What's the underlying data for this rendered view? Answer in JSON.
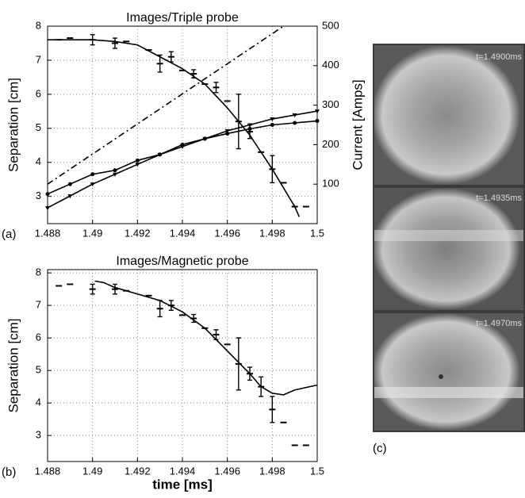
{
  "charts": [
    {
      "type": "line",
      "title": "Images/Triple probe",
      "panel_label": "(a)",
      "ylabel": "Separation [cm]",
      "y2label": "Current [Amps]",
      "xlim": [
        1.488,
        1.5
      ],
      "xticks": [
        1.488,
        1.49,
        1.492,
        1.494,
        1.496,
        1.498,
        1.5
      ],
      "ylim": [
        2.2,
        8
      ],
      "yticks": [
        3,
        4,
        5,
        6,
        7,
        8
      ],
      "y2lim": [
        0,
        500
      ],
      "y2ticks": [
        100,
        200,
        300,
        400,
        500
      ],
      "grid": true,
      "series": [
        {
          "x": [
            1.4885,
            1.489,
            1.49,
            1.491,
            1.4915,
            1.4925,
            1.493,
            1.4935,
            1.494,
            1.4945,
            1.495,
            1.4955,
            1.496,
            1.4965,
            1.497,
            1.4975,
            1.498,
            1.4985,
            1.499,
            1.4995
          ],
          "values": [
            7.6,
            7.65,
            7.6,
            7.5,
            7.55,
            7.3,
            6.9,
            7.1,
            6.7,
            6.6,
            6.3,
            6.2,
            5.8,
            5.2,
            4.9,
            4.3,
            3.8,
            3.4,
            2.7,
            2.7
          ],
          "errors": [
            null,
            null,
            0.15,
            0.15,
            null,
            null,
            0.25,
            0.15,
            null,
            0.12,
            null,
            0.15,
            null,
            0.8,
            0.2,
            null,
            0.4,
            null,
            null,
            null
          ],
          "marker": "dash",
          "connect": false,
          "color": "#000"
        },
        {
          "x": [
            1.488,
            1.489,
            1.49,
            1.491,
            1.492,
            1.493,
            1.494,
            1.495,
            1.496,
            1.497,
            1.498,
            1.499,
            1.4992
          ],
          "values": [
            7.6,
            7.6,
            7.6,
            7.55,
            7.45,
            7.1,
            6.75,
            6.3,
            5.6,
            4.8,
            3.8,
            2.7,
            2.4
          ],
          "color": "#000"
        },
        {
          "x": [
            1.488,
            1.489,
            1.49,
            1.491,
            1.492,
            1.493,
            1.494,
            1.495,
            1.496,
            1.497,
            1.498,
            1.499,
            1.5
          ],
          "values": [
            75,
            100,
            125,
            135,
            160,
            175,
            200,
            215,
            228,
            240,
            250,
            255,
            260
          ],
          "axis": "y2",
          "marker": "circle",
          "color": "#000"
        },
        {
          "x": [
            1.488,
            1.489,
            1.49,
            1.491,
            1.492,
            1.493,
            1.494,
            1.495,
            1.496,
            1.497,
            1.498,
            1.499,
            1.5
          ],
          "values": [
            40,
            70,
            100,
            125,
            150,
            175,
            195,
            215,
            235,
            250,
            265,
            275,
            285
          ],
          "axis": "y2",
          "marker": "triangle",
          "color": "#000"
        },
        {
          "x": [
            1.488,
            1.4985
          ],
          "values": [
            100,
            500
          ],
          "axis": "y2",
          "dash": "dash-dot",
          "color": "#000"
        }
      ]
    },
    {
      "type": "line",
      "title": "Images/Magnetic probe",
      "panel_label": "(b)",
      "ylabel": "Separation [cm]",
      "xlabel": "time [ms]",
      "xlim": [
        1.488,
        1.5
      ],
      "xticks": [
        1.488,
        1.49,
        1.492,
        1.494,
        1.496,
        1.498,
        1.5
      ],
      "ylim": [
        2.2,
        8.1
      ],
      "yticks": [
        3,
        4,
        5,
        6,
        7,
        8
      ],
      "grid": true,
      "series": [
        {
          "x": [
            1.4885,
            1.489,
            1.49,
            1.491,
            1.4915,
            1.4925,
            1.493,
            1.4935,
            1.494,
            1.4945,
            1.495,
            1.4955,
            1.496,
            1.4965,
            1.497,
            1.4975,
            1.498,
            1.4985,
            1.499,
            1.4995
          ],
          "values": [
            7.6,
            7.65,
            7.5,
            7.5,
            7.45,
            7.3,
            6.9,
            7.0,
            6.7,
            6.6,
            6.3,
            6.1,
            5.8,
            5.2,
            4.9,
            4.5,
            3.8,
            3.4,
            2.7,
            2.7
          ],
          "errors": [
            null,
            null,
            0.15,
            0.15,
            null,
            null,
            0.25,
            0.15,
            null,
            0.12,
            null,
            0.15,
            null,
            0.8,
            0.2,
            0.3,
            0.4,
            null,
            null,
            null
          ],
          "marker": "dash",
          "connect": false,
          "color": "#000"
        },
        {
          "x": [
            1.4901,
            1.4905,
            1.491,
            1.492,
            1.493,
            1.494,
            1.495,
            1.496,
            1.497,
            1.4975,
            1.498,
            1.4985,
            1.499,
            1.5
          ],
          "values": [
            7.75,
            7.7,
            7.55,
            7.35,
            7.15,
            6.8,
            6.3,
            5.6,
            4.9,
            4.5,
            4.3,
            4.25,
            4.4,
            4.55
          ],
          "color": "#000"
        }
      ]
    }
  ],
  "images": {
    "panel_label": "(c)",
    "frames": [
      {
        "label": "t=1.4900ms"
      },
      {
        "label": "t=1.4935ms"
      },
      {
        "label": "t=1.4970ms"
      }
    ]
  }
}
